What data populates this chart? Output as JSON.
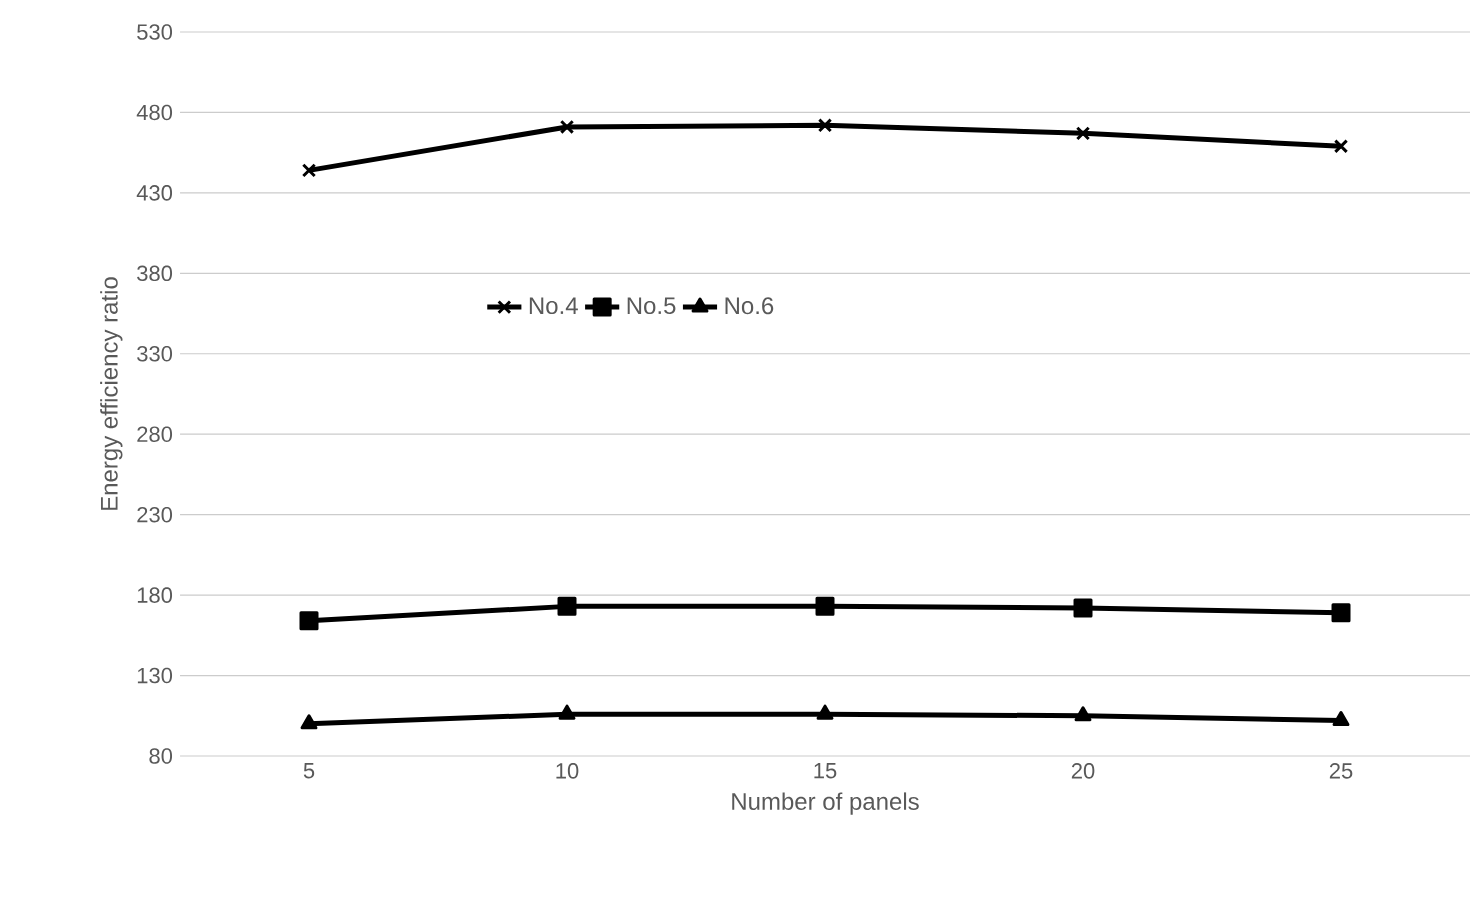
{
  "chart_data": {
    "type": "line",
    "xlabel": "Number of panels",
    "ylabel": "Energy efficiency ratio",
    "categories": [
      "5",
      "10",
      "15",
      "20",
      "25"
    ],
    "series": [
      {
        "name": "No.4",
        "color": "#000000",
        "marker": "cross",
        "values": [
          444,
          471,
          472,
          467,
          459
        ]
      },
      {
        "name": "No.5",
        "color": "#000000",
        "marker": "square",
        "values": [
          164,
          173,
          173,
          172,
          169
        ]
      },
      {
        "name": "No.6",
        "color": "#000000",
        "marker": "triangle",
        "values": [
          100,
          106,
          106,
          105,
          102
        ]
      }
    ],
    "ylim": [
      80,
      530
    ],
    "yticks": [
      80,
      130,
      180,
      230,
      280,
      330,
      380,
      430,
      480,
      530
    ],
    "grid": "y",
    "legend": "center",
    "line_style": "solid"
  }
}
